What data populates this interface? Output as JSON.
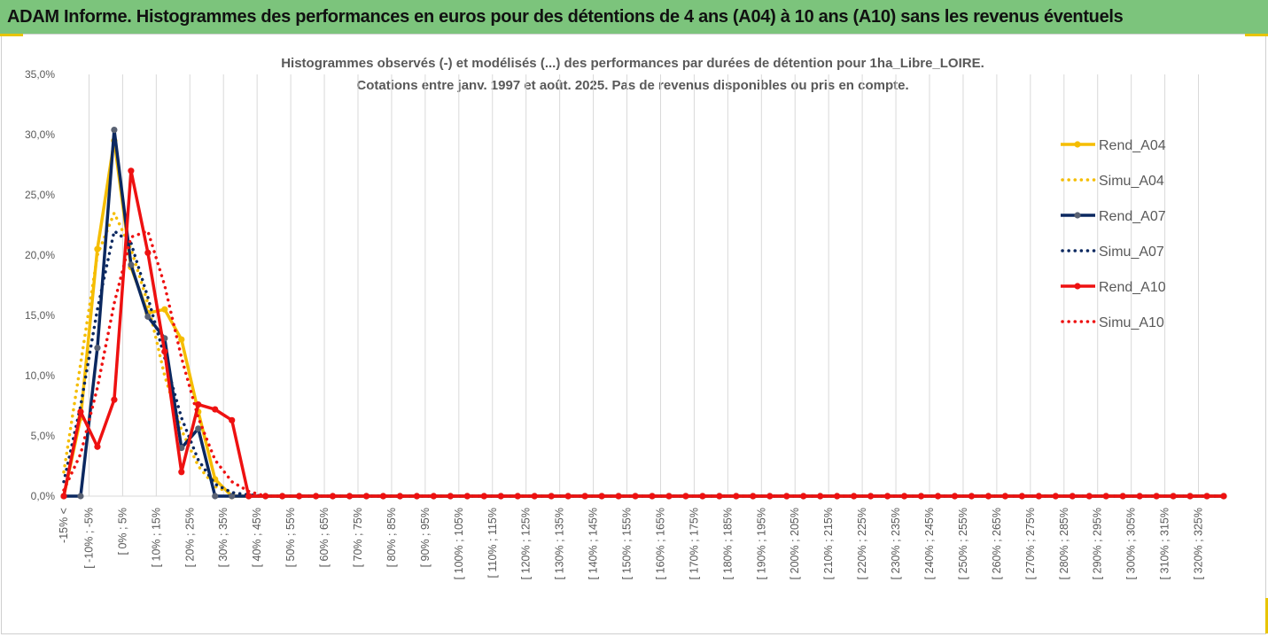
{
  "banner": {
    "title": "ADAM Informe. Histogrammes des performances en euros pour des détentions de 4 ans (A04) à 10 ans (A10) sans les revenus éventuels",
    "background": "#7cc47c"
  },
  "chart_data": {
    "type": "line",
    "title": "Histogrammes observés (-) et modélisés (...) des performances par durées de détention pour 1ha_Libre_LOIRE.",
    "subtitle": "Cotations entre janv. 1997 et août. 2025. Pas de revenus disponibles ou pris en compte.",
    "xlabel": "",
    "ylabel": "",
    "ylim": [
      0,
      35
    ],
    "y_ticks": [
      "0,0%",
      "5,0%",
      "10,0%",
      "15,0%",
      "20,0%",
      "25,0%",
      "30,0%",
      "35,0%"
    ],
    "grid": "vertical",
    "legend_position": "right",
    "x_labels": [
      "-15% <",
      "[ -10% ; -5%",
      "[ 0% ; 5%",
      "[ 10% ; 15%",
      "[ 20% ; 25%",
      "[ 30% ; 35%",
      "[ 40% ; 45%",
      "[ 50% ; 55%",
      "[ 60% ; 65%",
      "[ 70% ; 75%",
      "[ 80% ; 85%",
      "[ 90% ; 95%",
      "[ 100% ; 105%",
      "[ 110% ; 115%",
      "[ 120% ; 125%",
      "[ 130% ; 135%",
      "[ 140% ; 145%",
      "[ 150% ; 155%",
      "[ 160% ; 165%",
      "[ 170% ; 175%",
      "[ 180% ; 185%",
      "[ 190% ; 195%",
      "[ 200% ; 205%",
      "[ 210% ; 215%",
      "[ 220% ; 225%",
      "[ 230% ; 235%",
      "[ 240% ; 245%",
      "[ 250% ; 255%",
      "[ 260% ; 265%",
      "[ 270% ; 275%",
      "[ 280% ; 285%",
      "[ 290% ; 295%",
      "[ 300% ; 305%",
      "[ 310% ; 315%",
      "[ 320% ; 325%"
    ],
    "x_count": 70,
    "series": [
      {
        "name": "Rend_A04",
        "color": "#f5bd00",
        "style": "solid",
        "marker": true,
        "values": [
          0,
          6.5,
          20.5,
          29.5,
          19,
          15.2,
          15.5,
          13,
          7,
          1.4,
          0
        ]
      },
      {
        "name": "Simu_A04",
        "color": "#f5bd00",
        "style": "dotted",
        "marker": false,
        "values": [
          2,
          11,
          20,
          23.5,
          20.5,
          16,
          10,
          5.5,
          2.5,
          0.8,
          0.2,
          0
        ]
      },
      {
        "name": "Rend_A07",
        "color": "#0b2860",
        "style": "solid",
        "marker": true,
        "values": [
          0,
          0,
          12.3,
          30.4,
          19.2,
          14.9,
          13.1,
          4,
          5.6,
          0,
          0
        ]
      },
      {
        "name": "Simu_A07",
        "color": "#0b2860",
        "style": "dotted",
        "marker": false,
        "values": [
          1.2,
          7.5,
          15.5,
          22,
          21,
          16.5,
          11.5,
          6.5,
          3,
          1,
          0.3,
          0.1,
          0
        ]
      },
      {
        "name": "Rend_A10",
        "color": "#ee1111",
        "style": "solid",
        "marker": true,
        "values": [
          0,
          7,
          4.1,
          8,
          27,
          20.2,
          12,
          2,
          7.6,
          7.2,
          6.3,
          0
        ]
      },
      {
        "name": "Simu_A10",
        "color": "#ee1111",
        "style": "dotted",
        "marker": false,
        "values": [
          0.5,
          3.5,
          9,
          16,
          21.5,
          22,
          17.5,
          11.5,
          6.5,
          3,
          1.2,
          0.4,
          0
        ]
      }
    ]
  }
}
